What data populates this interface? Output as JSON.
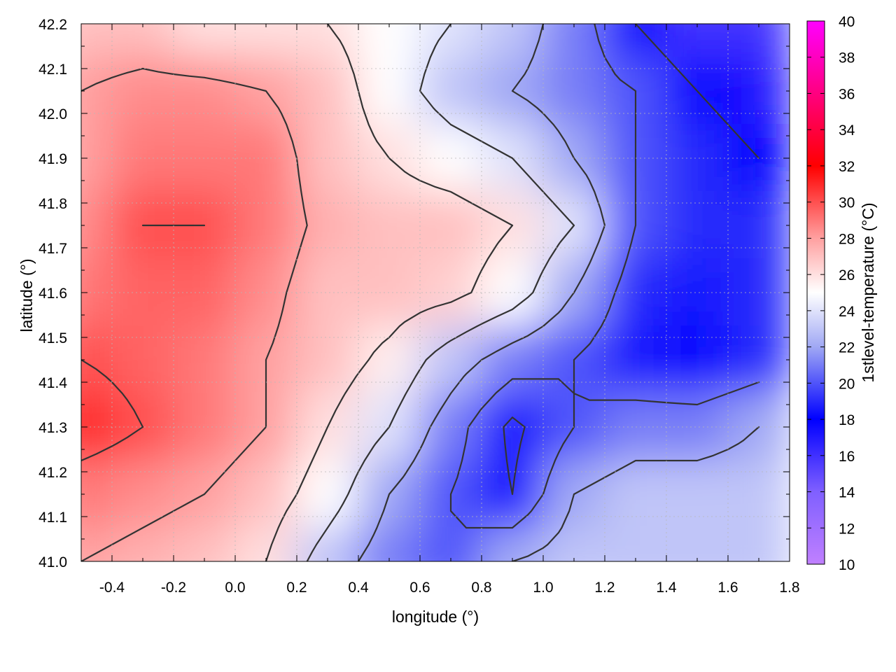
{
  "chart_data": {
    "type": "heatmap",
    "title": "",
    "xlabel": "longitude (°)",
    "ylabel": "latitude (°)",
    "xlim": [
      -0.5,
      1.8
    ],
    "ylim": [
      41.0,
      42.2
    ],
    "x_ticks": [
      "-0.4",
      "-0.2",
      "0.0",
      "0.2",
      "0.4",
      "0.6",
      "0.8",
      "1.0",
      "1.2",
      "1.4",
      "1.6",
      "1.8"
    ],
    "x_tick_values": [
      -0.4,
      -0.2,
      0.0,
      0.2,
      0.4,
      0.6,
      0.8,
      1.0,
      1.2,
      1.4,
      1.6,
      1.8
    ],
    "y_ticks": [
      "41.0",
      "41.1",
      "41.2",
      "41.3",
      "41.4",
      "41.5",
      "41.6",
      "41.7",
      "41.8",
      "41.9",
      "42.0",
      "42.1",
      "42.2"
    ],
    "y_tick_values": [
      41.0,
      41.1,
      41.2,
      41.3,
      41.4,
      41.5,
      41.6,
      41.7,
      41.8,
      41.9,
      42.0,
      42.1,
      42.2
    ],
    "grid": true,
    "colorbar": {
      "label": "1stlevel-temperature (°C)",
      "range": [
        10,
        40
      ],
      "ticks": [
        "10",
        "12",
        "14",
        "16",
        "18",
        "20",
        "22",
        "24",
        "26",
        "28",
        "30",
        "32",
        "34",
        "36",
        "38",
        "40"
      ],
      "tick_values": [
        10,
        12,
        14,
        16,
        18,
        20,
        22,
        24,
        26,
        28,
        30,
        32,
        34,
        36,
        38,
        40
      ],
      "stops": [
        {
          "value": 10,
          "color": "#c080ff"
        },
        {
          "value": 14,
          "color": "#8060ff"
        },
        {
          "value": 18,
          "color": "#0000ff"
        },
        {
          "value": 22,
          "color": "#a0a8f4"
        },
        {
          "value": 25,
          "color": "#ffffff"
        },
        {
          "value": 28,
          "color": "#ffa0a0"
        },
        {
          "value": 32,
          "color": "#ff0000"
        },
        {
          "value": 36,
          "color": "#ff0080"
        },
        {
          "value": 40,
          "color": "#ff00ff"
        }
      ]
    },
    "contour_color": "#333333",
    "temperature_field": {
      "columns": 12,
      "rows": 9,
      "description_grid_x": [
        -0.5,
        -0.3,
        -0.1,
        0.1,
        0.3,
        0.5,
        0.7,
        0.9,
        1.1,
        1.3,
        1.5,
        1.7
      ],
      "description_grid_y": [
        42.2,
        42.05,
        41.9,
        41.75,
        41.6,
        41.45,
        41.3,
        41.15,
        41.0
      ],
      "values": [
        [
          27,
          27,
          26,
          26,
          26,
          25,
          24,
          23,
          21,
          18,
          16,
          16
        ],
        [
          28,
          28.5,
          28.5,
          28,
          27,
          25,
          23,
          22,
          21,
          20,
          18,
          17
        ],
        [
          28,
          29,
          29,
          29,
          27,
          26,
          25,
          24,
          22,
          20,
          19,
          18
        ],
        [
          28.5,
          30,
          30,
          29,
          27.5,
          27,
          27,
          26,
          24,
          20,
          19,
          19
        ],
        [
          29,
          29.5,
          29.5,
          28.5,
          27,
          27,
          26.5,
          25,
          22,
          19,
          18.5,
          19
        ],
        [
          30,
          29.5,
          29,
          28,
          27,
          25.5,
          23,
          21,
          20,
          18.5,
          18,
          19
        ],
        [
          31,
          30,
          29,
          28,
          26,
          24,
          21,
          17.5,
          20,
          21,
          21,
          22
        ],
        [
          29,
          28.5,
          28,
          27,
          25,
          22,
          20,
          18,
          22,
          23,
          23,
          23
        ],
        [
          28,
          27.5,
          27,
          26,
          23,
          21,
          20,
          22,
          23,
          23,
          23,
          23
        ]
      ]
    }
  }
}
